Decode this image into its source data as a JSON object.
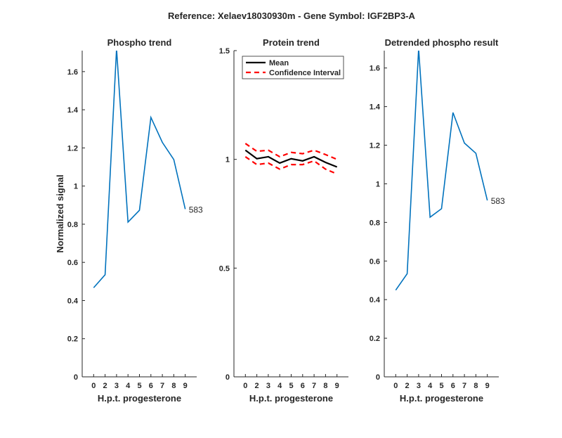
{
  "figure_title": "Reference:  Xelaev18030930m - Gene Symbol:  IGF2BP3-A",
  "chart_data": [
    {
      "type": "line",
      "title": "Phospho trend",
      "xlabel": "H.p.t. progesterone",
      "ylabel": "Normalized signal",
      "categories": [
        "0",
        "2",
        "3",
        "4",
        "5",
        "6",
        "7",
        "8",
        "9"
      ],
      "ylim": [
        0,
        1.71
      ],
      "yticks": [
        0,
        0.2,
        0.4,
        0.6,
        0.8,
        1,
        1.2,
        1.4,
        1.6
      ],
      "ytick_labels": [
        "0",
        "0.2",
        "0.4",
        "0.6",
        "0.8",
        "1",
        "1.2",
        "1.4",
        "1.6"
      ],
      "series": [
        {
          "name": "583",
          "color": "#0072bd",
          "values": [
            0.467,
            0.535,
            1.72,
            0.811,
            0.873,
            1.36,
            1.229,
            1.139,
            0.879
          ]
        }
      ],
      "annotation": "583"
    },
    {
      "type": "line",
      "title": "Protein trend",
      "xlabel": "H.p.t. progesterone",
      "ylabel": "",
      "categories": [
        "0",
        "2",
        "3",
        "4",
        "5",
        "6",
        "7",
        "8",
        "9"
      ],
      "ylim": [
        0,
        1.5
      ],
      "yticks": [
        0,
        0.5,
        1,
        1.5
      ],
      "ytick_labels": [
        "0",
        "0.5",
        "1",
        "1.5"
      ],
      "legend": "top-right",
      "series": [
        {
          "name": "Mean",
          "color": "#000000",
          "dash": false,
          "values": [
            1.042,
            1.003,
            1.012,
            0.983,
            1.003,
            0.993,
            1.012,
            0.986,
            0.965
          ]
        },
        {
          "name": "Confidence Interval",
          "color": "#ff0000",
          "dash": true,
          "values": [
            1.073,
            1.037,
            1.042,
            1.012,
            1.032,
            1.026,
            1.042,
            1.022,
            1.0
          ]
        },
        {
          "name": "Confidence Interval lower",
          "legend": false,
          "color": "#ff0000",
          "dash": true,
          "values": [
            1.012,
            0.976,
            0.983,
            0.955,
            0.976,
            0.976,
            0.993,
            0.955,
            0.933
          ]
        }
      ]
    },
    {
      "type": "line",
      "title": "Detrended phospho result",
      "xlabel": "H.p.t. progesterone",
      "ylabel": "",
      "categories": [
        "0",
        "2",
        "3",
        "4",
        "5",
        "6",
        "7",
        "8",
        "9"
      ],
      "ylim": [
        0,
        1.69
      ],
      "yticks": [
        0,
        0.2,
        0.4,
        0.6,
        0.8,
        1,
        1.2,
        1.4,
        1.6
      ],
      "ytick_labels": [
        "0",
        "0.2",
        "0.4",
        "0.6",
        "0.8",
        "1",
        "1.2",
        "1.4",
        "1.6"
      ],
      "series": [
        {
          "name": "583",
          "color": "#0072bd",
          "values": [
            0.449,
            0.534,
            1.7,
            0.827,
            0.871,
            1.369,
            1.211,
            1.158,
            0.914
          ]
        }
      ],
      "annotation": "583"
    }
  ]
}
